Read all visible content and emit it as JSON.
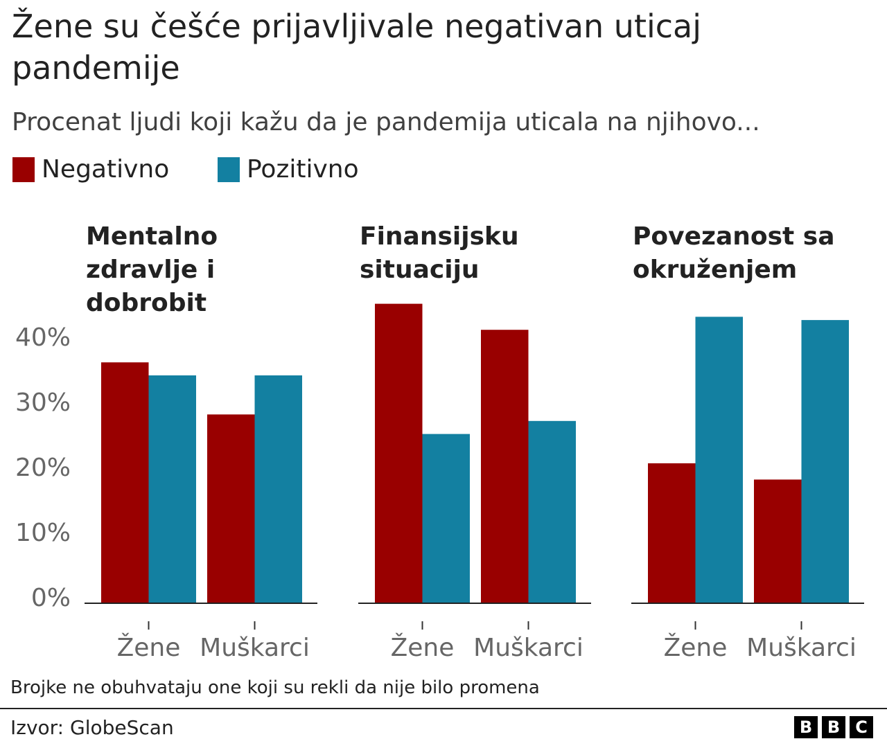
{
  "title": "Žene su češće prijavljivale negativan uticaj pandemije",
  "subtitle": "Procenat ljudi koji kažu da je pandemija uticala na njihovo...",
  "note": "Brojke ne obuhvataju one koji su rekli da nije bilo promena",
  "source": "Izvor: GlobeScan",
  "logo": "BBC",
  "colors": {
    "negative": "#990000",
    "positive": "#1380a1"
  },
  "chart_data": {
    "type": "bar",
    "legend": [
      {
        "name": "Negativno",
        "color": "#990000"
      },
      {
        "name": "Pozitivno",
        "color": "#1380a1"
      }
    ],
    "legend_placement": "top-left",
    "yticks": [
      "0%",
      "10%",
      "20%",
      "30%",
      "40%"
    ],
    "ylim": [
      0,
      47
    ],
    "categories": [
      "Žene",
      "Muškarci"
    ],
    "panels": [
      {
        "title": "Mentalno zdravlje i dobrobit",
        "series": [
          {
            "name": "Negativno",
            "values": [
              37,
              29
            ]
          },
          {
            "name": "Pozitivno",
            "values": [
              35,
              35
            ]
          }
        ]
      },
      {
        "title": "Finansijsku situaciju",
        "series": [
          {
            "name": "Negativno",
            "values": [
              46,
              42
            ]
          },
          {
            "name": "Pozitivno",
            "values": [
              26,
              28
            ]
          }
        ]
      },
      {
        "title": "Povezanost sa okruženjem",
        "series": [
          {
            "name": "Negativno",
            "values": [
              21.5,
              19
            ]
          },
          {
            "name": "Pozitivno",
            "values": [
              44,
              43.5
            ]
          }
        ]
      }
    ]
  }
}
